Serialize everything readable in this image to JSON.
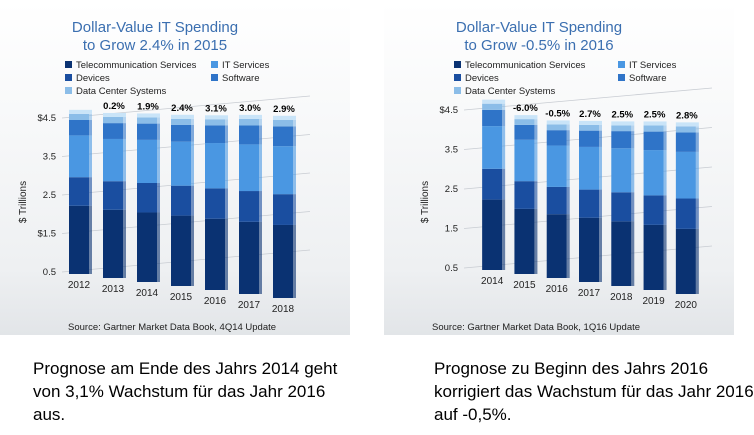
{
  "colors": {
    "title": "#3b6fb0",
    "telecommunication": "#0a3272",
    "devices": "#1a4ea0",
    "data_center": "#8bbde8",
    "it_services": "#4a97e2",
    "software": "#2f74c8",
    "axis_text": "#222222",
    "growth_label": "#000000"
  },
  "legend": {
    "telecommunication": "Telecommunication Services",
    "devices": "Devices",
    "data_center": "Data Center Systems",
    "it_services": "IT Services",
    "software": "Software"
  },
  "captions": {
    "left": "Prognose am Ende des Jahrs 2014 geht von 3,1% Wachstum für das Jahr 2016 aus.",
    "right": "Prognose zu Beginn des Jahrs 2016 korrigiert das Wachstum für das Jahr 2016 auf -0,5%."
  },
  "chart_data": [
    {
      "type": "bar",
      "stacked": true,
      "title": [
        "Dollar-Value IT Spending",
        "to Grow 2.4% in 2015"
      ],
      "ylabel": "$ Trillions",
      "y_ticks": [
        "$4.5",
        "3.5",
        "2.5",
        "$1.5",
        "0.5"
      ],
      "ylim": [
        0,
        4.5
      ],
      "categories": [
        "2012",
        "2013",
        "2014",
        "2015",
        "2016",
        "2017",
        "2018"
      ],
      "growth_labels": [
        "",
        "0.2%",
        "1.9%",
        "2.4%",
        "3.1%",
        "3.0%",
        "2.9%"
      ],
      "source": "Source: Gartner Market Data Book, 4Q14 Update",
      "series": [
        {
          "name": "Telecommunication Services",
          "values": [
            1.55,
            1.55,
            1.58,
            1.6,
            1.62,
            1.64,
            1.66
          ]
        },
        {
          "name": "Devices",
          "values": [
            0.65,
            0.65,
            0.67,
            0.68,
            0.69,
            0.7,
            0.7
          ]
        },
        {
          "name": "IT Services",
          "values": [
            0.95,
            0.96,
            0.98,
            1.0,
            1.03,
            1.06,
            1.09
          ]
        },
        {
          "name": "Software",
          "values": [
            0.35,
            0.36,
            0.37,
            0.38,
            0.4,
            0.43,
            0.45
          ]
        },
        {
          "name": "Data Center Systems",
          "values": [
            0.14,
            0.14,
            0.14,
            0.14,
            0.14,
            0.15,
            0.15
          ]
        }
      ]
    },
    {
      "type": "bar",
      "stacked": true,
      "title": [
        "Dollar-Value IT Spending",
        "to Grow -0.5% in 2016"
      ],
      "ylabel": "$ Trillions",
      "y_ticks": [
        "$4.5",
        "3.5",
        "2.5",
        "1.5",
        "0.5"
      ],
      "ylim": [
        0,
        4.5
      ],
      "categories": [
        "2014",
        "2015",
        "2016",
        "2017",
        "2018",
        "2019",
        "2020"
      ],
      "growth_labels": [
        "",
        "-6.0%",
        "-0.5%",
        "2.7%",
        "2.5%",
        "2.5%",
        "2.8%"
      ],
      "source": "Source: Gartner Market Data Book, 1Q16 Update",
      "series": [
        {
          "name": "Telecommunication Services",
          "values": [
            1.6,
            1.48,
            1.45,
            1.46,
            1.47,
            1.48,
            1.48
          ]
        },
        {
          "name": "Devices",
          "values": [
            0.7,
            0.63,
            0.62,
            0.64,
            0.66,
            0.67,
            0.69
          ]
        },
        {
          "name": "IT Services",
          "values": [
            0.97,
            0.94,
            0.94,
            0.97,
            1.0,
            1.03,
            1.06
          ]
        },
        {
          "name": "Software",
          "values": [
            0.37,
            0.34,
            0.35,
            0.37,
            0.39,
            0.42,
            0.44
          ]
        },
        {
          "name": "Data Center Systems",
          "values": [
            0.14,
            0.13,
            0.13,
            0.13,
            0.13,
            0.14,
            0.14
          ]
        }
      ]
    }
  ]
}
